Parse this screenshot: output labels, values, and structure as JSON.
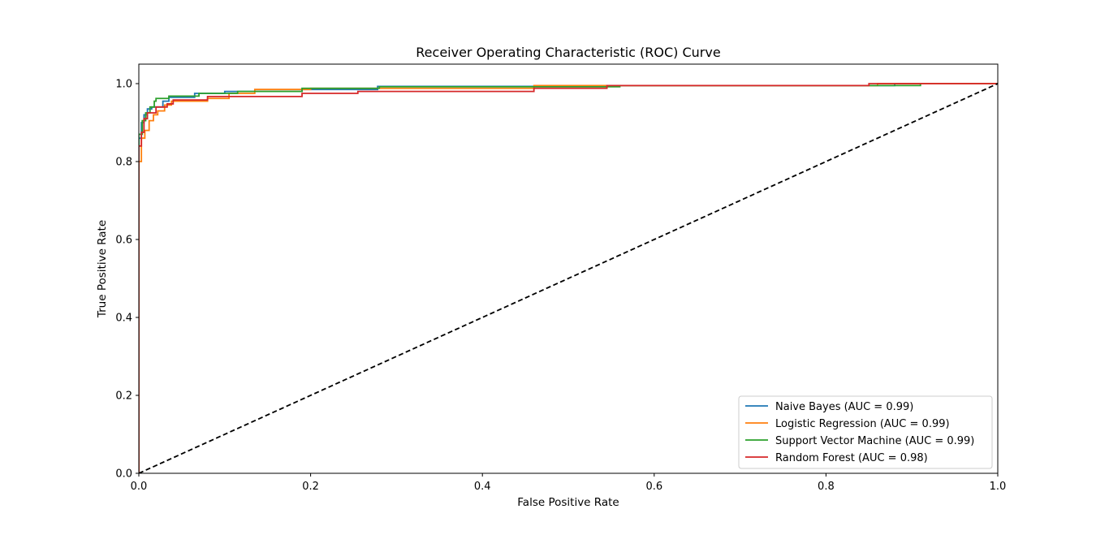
{
  "chart_data": {
    "type": "line",
    "title": "Receiver Operating Characteristic (ROC) Curve",
    "xlabel": "False Positive Rate",
    "ylabel": "True Positive Rate",
    "xlim": [
      0.0,
      1.0
    ],
    "ylim": [
      0.0,
      1.05
    ],
    "xticks": [
      0.0,
      0.2,
      0.4,
      0.6,
      0.8,
      1.0
    ],
    "yticks": [
      0.0,
      0.2,
      0.4,
      0.6,
      0.8,
      1.0
    ],
    "xtick_labels": [
      "0.0",
      "0.2",
      "0.4",
      "0.6",
      "0.8",
      "1.0"
    ],
    "ytick_labels": [
      "0.0",
      "0.2",
      "0.4",
      "0.6",
      "0.8",
      "1.0"
    ],
    "grid": false,
    "legend_position": "lower-right",
    "series": [
      {
        "name": "Naive Bayes (AUC = 0.99)",
        "color": "#1f77b4",
        "x": [
          0.0,
          0.0,
          0.003,
          0.003,
          0.006,
          0.006,
          0.01,
          0.01,
          0.015,
          0.015,
          0.028,
          0.028,
          0.035,
          0.035,
          0.065,
          0.065,
          0.1,
          0.1,
          0.19,
          0.19,
          0.278,
          0.278,
          0.43,
          0.43,
          0.55,
          0.55,
          0.88,
          0.88,
          1.0
        ],
        "y": [
          0.0,
          0.86,
          0.86,
          0.9,
          0.9,
          0.92,
          0.92,
          0.935,
          0.935,
          0.94,
          0.94,
          0.955,
          0.955,
          0.965,
          0.965,
          0.975,
          0.975,
          0.98,
          0.98,
          0.985,
          0.985,
          0.993,
          0.993,
          0.993,
          0.993,
          0.995,
          0.995,
          1.0,
          1.0
        ]
      },
      {
        "name": "Logistic Regression (AUC = 0.99)",
        "color": "#ff7f0e",
        "x": [
          0.0,
          0.0,
          0.003,
          0.003,
          0.007,
          0.007,
          0.012,
          0.012,
          0.017,
          0.017,
          0.022,
          0.022,
          0.03,
          0.03,
          0.038,
          0.038,
          0.08,
          0.08,
          0.105,
          0.105,
          0.135,
          0.135,
          0.2,
          0.2,
          0.46,
          0.46,
          0.86,
          0.86,
          1.0
        ],
        "y": [
          0.0,
          0.8,
          0.8,
          0.86,
          0.86,
          0.88,
          0.88,
          0.905,
          0.905,
          0.92,
          0.92,
          0.93,
          0.93,
          0.945,
          0.945,
          0.955,
          0.955,
          0.962,
          0.962,
          0.975,
          0.975,
          0.985,
          0.985,
          0.988,
          0.988,
          0.995,
          0.995,
          1.0,
          1.0
        ]
      },
      {
        "name": "Support Vector Machine (AUC = 0.99)",
        "color": "#2ca02c",
        "x": [
          0.0,
          0.0,
          0.004,
          0.004,
          0.008,
          0.008,
          0.013,
          0.013,
          0.018,
          0.018,
          0.02,
          0.02,
          0.035,
          0.035,
          0.07,
          0.07,
          0.115,
          0.115,
          0.19,
          0.19,
          0.28,
          0.28,
          0.56,
          0.56,
          0.91,
          0.91
        ],
        "y": [
          0.0,
          0.87,
          0.87,
          0.905,
          0.905,
          0.925,
          0.925,
          0.94,
          0.94,
          0.955,
          0.955,
          0.962,
          0.962,
          0.968,
          0.968,
          0.975,
          0.975,
          0.98,
          0.98,
          0.988,
          0.988,
          0.992,
          0.992,
          0.995,
          0.995,
          1.0
        ]
      },
      {
        "name": "Random Forest (AUC = 0.98)",
        "color": "#d62728",
        "x": [
          0.0,
          0.0,
          0.003,
          0.003,
          0.006,
          0.006,
          0.01,
          0.01,
          0.02,
          0.02,
          0.033,
          0.033,
          0.04,
          0.04,
          0.08,
          0.08,
          0.155,
          0.155,
          0.19,
          0.19,
          0.255,
          0.255,
          0.46,
          0.46,
          0.545,
          0.545,
          0.85,
          0.85,
          1.0
        ],
        "y": [
          0.0,
          0.84,
          0.84,
          0.875,
          0.875,
          0.91,
          0.91,
          0.925,
          0.925,
          0.94,
          0.94,
          0.948,
          0.948,
          0.958,
          0.958,
          0.967,
          0.967,
          0.967,
          0.967,
          0.975,
          0.975,
          0.98,
          0.98,
          0.988,
          0.988,
          0.995,
          0.995,
          1.0,
          1.0
        ]
      }
    ],
    "reference_line": {
      "style": "dashed",
      "color": "#000000",
      "x": [
        0.0,
        1.0
      ],
      "y": [
        0.0,
        1.0
      ]
    },
    "colors": {
      "axis": "#000000",
      "legend_border": "#cccccc"
    }
  }
}
